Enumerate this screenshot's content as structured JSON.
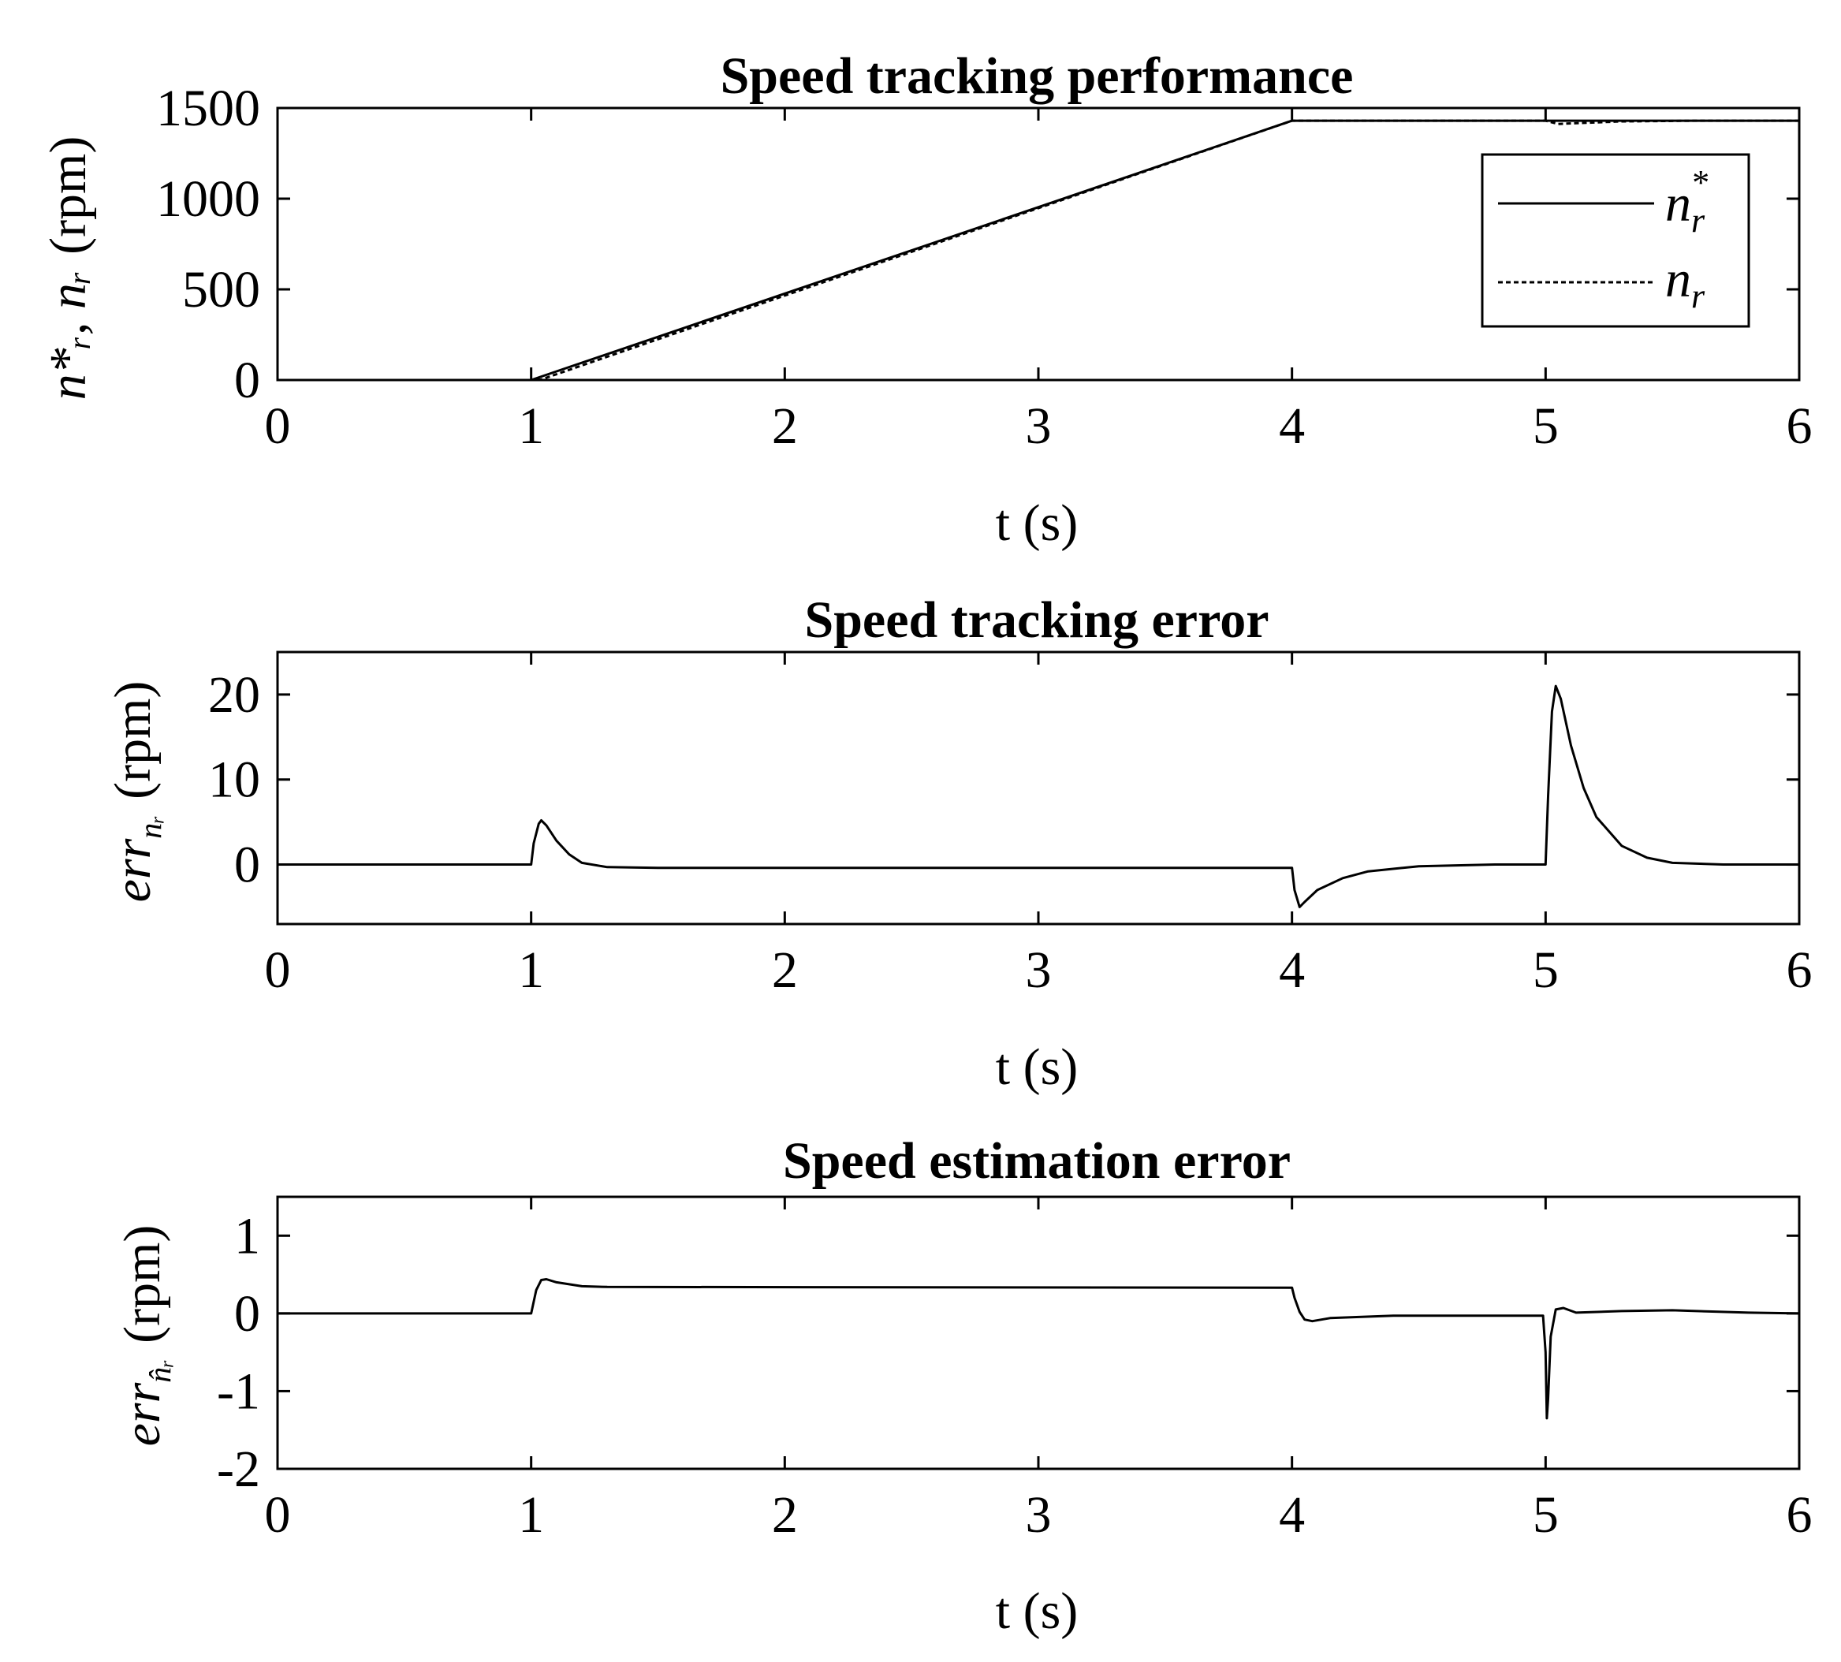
{
  "chart_data": [
    {
      "type": "line",
      "title": "Speed tracking performance",
      "xlabel": "t (s)",
      "ylabel_math": "n*r, nr",
      "ylabel_unit": "(rpm)",
      "xlim": [
        0,
        6
      ],
      "ylim": [
        0,
        1500
      ],
      "xticks": [
        0,
        1,
        2,
        3,
        4,
        5,
        6
      ],
      "yticks": [
        0,
        500,
        1000,
        1500
      ],
      "legend": {
        "location": "top-right",
        "entries": [
          "n*r",
          "nr"
        ]
      },
      "series": [
        {
          "name": "n*r",
          "style": "solid",
          "points": [
            [
              0,
              0
            ],
            [
              1,
              0
            ],
            [
              4,
              1430
            ],
            [
              6,
              1430
            ]
          ]
        },
        {
          "name": "nr",
          "style": "dashed",
          "points": [
            [
              0,
              0
            ],
            [
              1,
              0
            ],
            [
              1.04,
              3
            ],
            [
              4,
              1430
            ],
            [
              5,
              1430
            ],
            [
              5.05,
              1412
            ],
            [
              5.15,
              1418
            ],
            [
              5.3,
              1426
            ],
            [
              5.6,
              1430
            ],
            [
              6,
              1430
            ]
          ]
        }
      ]
    },
    {
      "type": "line",
      "title": "Speed tracking error",
      "xlabel": "t (s)",
      "ylabel_math": "err nr",
      "ylabel_unit": "(rpm)",
      "xlim": [
        0,
        6
      ],
      "ylim": [
        -7,
        25
      ],
      "xticks": [
        0,
        1,
        2,
        3,
        4,
        5,
        6
      ],
      "yticks": [
        0,
        10,
        20
      ],
      "series": [
        {
          "name": "err nr",
          "style": "solid",
          "points": [
            [
              0,
              0
            ],
            [
              1,
              0
            ],
            [
              1.01,
              2.5
            ],
            [
              1.03,
              4.8
            ],
            [
              1.04,
              5.2
            ],
            [
              1.06,
              4.6
            ],
            [
              1.1,
              2.8
            ],
            [
              1.15,
              1.2
            ],
            [
              1.2,
              0.2
            ],
            [
              1.3,
              -0.3
            ],
            [
              1.5,
              -0.4
            ],
            [
              4,
              -0.4
            ],
            [
              4.01,
              -3
            ],
            [
              4.03,
              -5
            ],
            [
              4.05,
              -4.4
            ],
            [
              4.1,
              -3
            ],
            [
              4.2,
              -1.6
            ],
            [
              4.3,
              -0.8
            ],
            [
              4.5,
              -0.2
            ],
            [
              4.8,
              0
            ],
            [
              5,
              0
            ],
            [
              5.01,
              8
            ],
            [
              5.025,
              18
            ],
            [
              5.04,
              21
            ],
            [
              5.06,
              19.5
            ],
            [
              5.1,
              14
            ],
            [
              5.15,
              9
            ],
            [
              5.2,
              5.6
            ],
            [
              5.3,
              2.2
            ],
            [
              5.4,
              0.8
            ],
            [
              5.5,
              0.2
            ],
            [
              5.7,
              0
            ],
            [
              6,
              0
            ]
          ]
        }
      ]
    },
    {
      "type": "line",
      "title": "Speed estimation error",
      "xlabel": "t (s)",
      "ylabel_math": "err n̂r",
      "ylabel_unit": "(rpm)",
      "xlim": [
        0,
        6
      ],
      "ylim": [
        -2,
        1.5
      ],
      "xticks": [
        0,
        1,
        2,
        3,
        4,
        5,
        6
      ],
      "yticks": [
        -2,
        -1,
        0,
        1
      ],
      "series": [
        {
          "name": "err n̂r",
          "style": "solid",
          "points": [
            [
              0,
              0
            ],
            [
              1,
              0
            ],
            [
              1.02,
              0.3
            ],
            [
              1.04,
              0.43
            ],
            [
              1.06,
              0.44
            ],
            [
              1.1,
              0.4
            ],
            [
              1.2,
              0.35
            ],
            [
              1.3,
              0.34
            ],
            [
              4,
              0.33
            ],
            [
              4.01,
              0.2
            ],
            [
              4.03,
              0.02
            ],
            [
              4.05,
              -0.08
            ],
            [
              4.08,
              -0.1
            ],
            [
              4.15,
              -0.06
            ],
            [
              4.4,
              -0.03
            ],
            [
              4.99,
              -0.03
            ],
            [
              5,
              -0.5
            ],
            [
              5.005,
              -1.35
            ],
            [
              5.01,
              -1.1
            ],
            [
              5.02,
              -0.3
            ],
            [
              5.04,
              0.05
            ],
            [
              5.07,
              0.07
            ],
            [
              5.12,
              0.01
            ],
            [
              5.3,
              0.03
            ],
            [
              5.5,
              0.04
            ],
            [
              5.8,
              0.01
            ],
            [
              6,
              0
            ]
          ]
        }
      ]
    }
  ]
}
